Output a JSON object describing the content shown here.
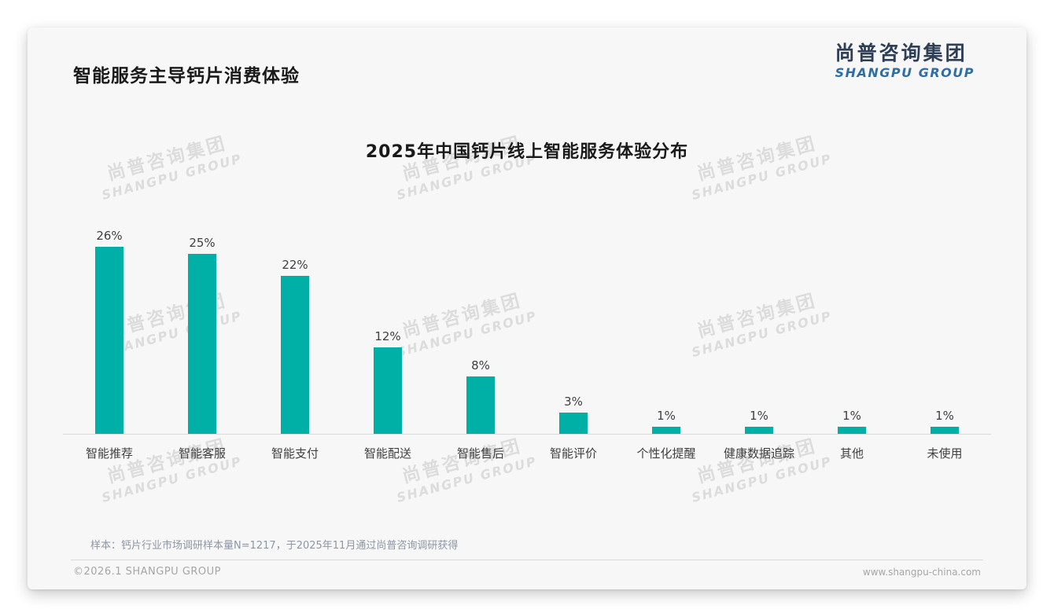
{
  "page": {
    "title": "智能服务主导钙片消费体验"
  },
  "logo": {
    "cn": "尚普咨询集团",
    "en": "SHANGPU GROUP"
  },
  "watermark": {
    "cn": "尚普咨询集团",
    "en": "SHANGPU GROUP"
  },
  "chart_data": {
    "type": "bar",
    "title": "2025年中国钙片线上智能服务体验分布",
    "categories": [
      "智能推荐",
      "智能客服",
      "智能支付",
      "智能配送",
      "智能售后",
      "智能评价",
      "个性化提醒",
      "健康数据追踪",
      "其他",
      "未使用"
    ],
    "values": [
      26,
      25,
      22,
      12,
      8,
      3,
      1,
      1,
      1,
      1
    ],
    "data_labels": [
      "26%",
      "25%",
      "22%",
      "12%",
      "8%",
      "3%",
      "1%",
      "1%",
      "1%",
      "1%"
    ],
    "unit": "%",
    "xlabel": "",
    "ylabel": "",
    "ylim": [
      0,
      28
    ],
    "grid": false,
    "legend": false,
    "bar_color": "#00B0A6"
  },
  "footnote": "样本：钙片行业市场调研样本量N=1217，于2025年11月通过尚普咨询调研获得",
  "footer": {
    "left": "©2026.1 SHANGPU GROUP",
    "right": "www.shangpu-china.com"
  },
  "colors": {
    "accent_teal": "#00B0A6",
    "logo_cn_navy": "#2D3E55",
    "logo_en_blue": "#2E6EA6",
    "axis_line": "#D9D9D9",
    "text_dark": "#1A1A1A",
    "text_label": "#404040",
    "footnote_gray": "#8D97A6",
    "footer_gray": "#A6A6A6",
    "card_bg": "#F7F7F7"
  }
}
